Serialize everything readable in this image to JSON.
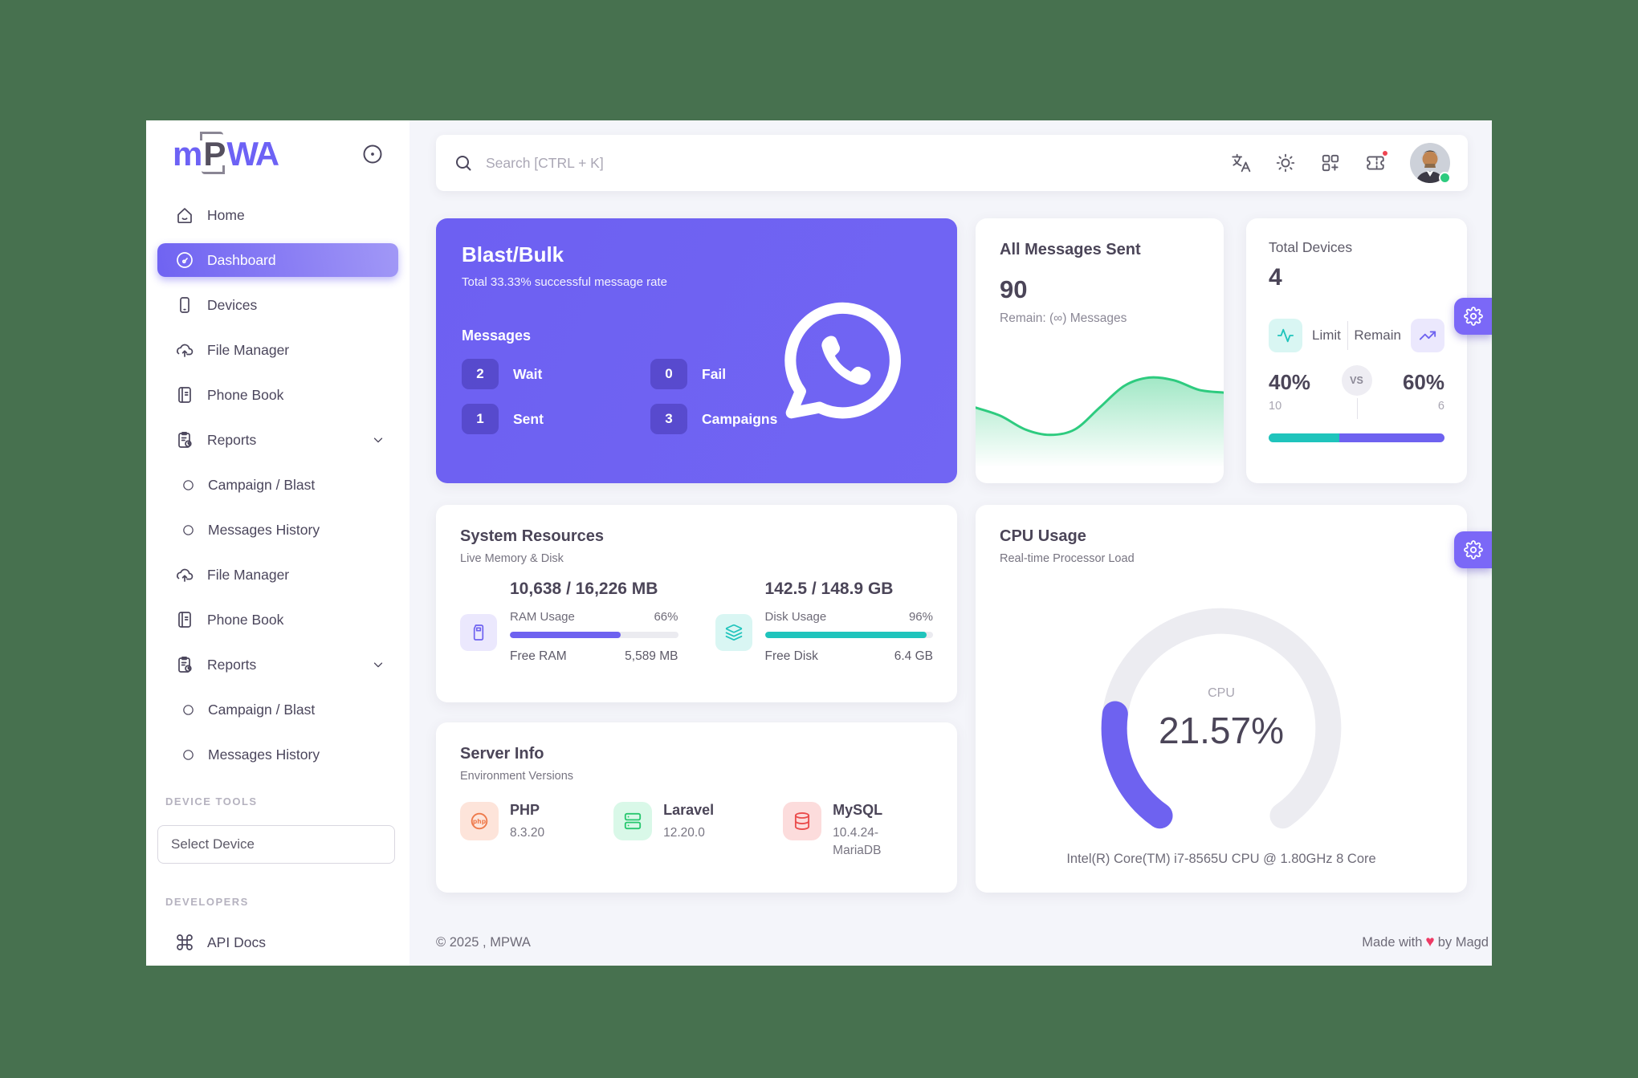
{
  "page": {
    "background": "#47714f",
    "content_background": "#f4f5fa"
  },
  "sidebar": {
    "logo": {
      "part1": "m",
      "part2": "P",
      "part3": "WA"
    },
    "items": [
      {
        "label": "Home",
        "icon": "home-icon"
      },
      {
        "label": "Dashboard",
        "icon": "dashboard-icon",
        "active": true
      },
      {
        "label": "Devices",
        "icon": "smartphone-icon"
      },
      {
        "label": "File Manager",
        "icon": "cloud-upload-icon"
      },
      {
        "label": "Phone Book",
        "icon": "phone-book-icon"
      },
      {
        "label": "Reports",
        "icon": "report-icon",
        "chevron": true
      },
      {
        "label": "Campaign / Blast",
        "icon": "circle-icon",
        "sub": true
      },
      {
        "label": "Messages History",
        "icon": "circle-icon",
        "sub": true
      },
      {
        "label": "File Manager",
        "icon": "cloud-upload-icon"
      },
      {
        "label": "Phone Book",
        "icon": "phone-book-icon"
      },
      {
        "label": "Reports",
        "icon": "report-icon",
        "chevron": true
      },
      {
        "label": "Campaign / Blast",
        "icon": "circle-icon",
        "sub": true
      },
      {
        "label": "Messages History",
        "icon": "circle-icon",
        "sub": true
      }
    ],
    "sections": {
      "device_tools": "DEVICE TOOLS",
      "developers": "DEVELOPERS"
    },
    "select_device": "Select Device",
    "api_docs": "API Docs"
  },
  "topbar": {
    "search_placeholder": "Search [CTRL + K]",
    "icons": [
      "translate-icon",
      "sun-icon",
      "grid-plus-icon",
      "ticket-icon"
    ],
    "avatar_status": "online"
  },
  "blast": {
    "title": "Blast/Bulk",
    "subtitle": "Total 33.33% successful message rate",
    "messages_label": "Messages",
    "stats": [
      {
        "value": "2",
        "label": "Wait"
      },
      {
        "value": "0",
        "label": "Fail"
      },
      {
        "value": "1",
        "label": "Sent"
      },
      {
        "value": "3",
        "label": "Campaigns"
      }
    ],
    "accent": "#6d60f2"
  },
  "messages_sent": {
    "title": "All Messages Sent",
    "count": "90",
    "remain": "Remain: (∞) Messages",
    "line_color": "#2ecb7f"
  },
  "total_devices": {
    "title": "Total Devices",
    "count": "4",
    "limit_label": "Limit",
    "remain_label": "Remain",
    "vs": "VS",
    "limit_pct": "40%",
    "remain_pct": "60%",
    "limit_value": "10",
    "remain_value": "6",
    "limit_color": "#1fc4bc",
    "remain_color": "#6e62f0"
  },
  "system_resources": {
    "title": "System Resources",
    "subtitle": "Live Memory & Disk",
    "ram": {
      "header": "10,638 / 16,226 MB",
      "usage_label": "RAM Usage",
      "usage_pct": "66%",
      "free_label": "Free RAM",
      "free_value": "5,589 MB",
      "color": "#6e62f0"
    },
    "disk": {
      "header": "142.5 / 148.9 GB",
      "usage_label": "Disk Usage",
      "usage_pct": "96%",
      "free_label": "Free Disk",
      "free_value": "6.4 GB",
      "color": "#1fc4bc"
    }
  },
  "server_info": {
    "title": "Server Info",
    "subtitle": "Environment Versions",
    "items": [
      {
        "name": "PHP",
        "version": "8.3.20",
        "icon": "php-icon"
      },
      {
        "name": "Laravel",
        "version": "12.20.0",
        "icon": "server-icon"
      },
      {
        "name": "MySQL",
        "version": "10.4.24-MariaDB",
        "icon": "database-icon"
      }
    ]
  },
  "cpu": {
    "title": "CPU Usage",
    "subtitle": "Real-time Processor Load",
    "gauge_label": "CPU",
    "gauge_value": "21.57%",
    "gauge_percent": 21.57,
    "footer": "Intel(R) Core(TM) i7-8565U CPU @ 1.80GHz 8 Core",
    "gauge_color": "#6e62f0",
    "track_color": "#ececf1"
  },
  "footer": {
    "left": "© 2025 , MPWA",
    "made": "Made with",
    "heart": "♥",
    "by": "by Magd"
  },
  "chart_data": [
    {
      "type": "area",
      "name": "all-messages-sent-sparkline",
      "title": "All Messages Sent trend",
      "x": [
        0,
        1,
        2,
        3,
        4,
        5,
        6,
        7,
        8,
        9,
        10
      ],
      "values": [
        46,
        40,
        30,
        26,
        30,
        46,
        62,
        68,
        66,
        59,
        57
      ],
      "ylim": [
        0,
        100
      ],
      "grid": false,
      "legend": "none",
      "color": "#2ecb7f"
    },
    {
      "type": "gauge",
      "name": "cpu-usage-gauge",
      "label": "CPU",
      "value": 21.57,
      "max": 100,
      "unit": "%"
    },
    {
      "type": "bar",
      "name": "device-limit-vs-remain",
      "categories": [
        "Limit",
        "Remain"
      ],
      "values": [
        40,
        60
      ],
      "unit": "%",
      "raw": [
        10,
        6
      ]
    },
    {
      "type": "bar",
      "name": "ram-usage",
      "categories": [
        "RAM Usage"
      ],
      "values": [
        66
      ],
      "unit": "%"
    },
    {
      "type": "bar",
      "name": "disk-usage",
      "categories": [
        "Disk Usage"
      ],
      "values": [
        96
      ],
      "unit": "%"
    }
  ]
}
